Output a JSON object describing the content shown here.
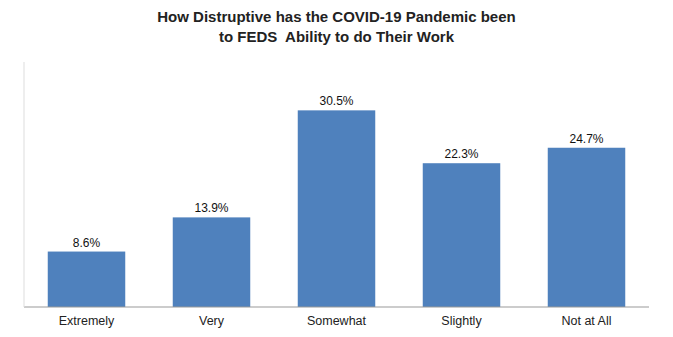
{
  "chart_data": {
    "type": "bar",
    "title": "How Distruptive has the COVID-19 Pandemic been\nto FEDS  Ability to do Their Work",
    "categories": [
      "Extremely",
      "Very",
      "Somewhat",
      "Slightly",
      "Not at All"
    ],
    "values": [
      8.6,
      13.9,
      30.5,
      22.3,
      24.7
    ],
    "value_labels": [
      "8.6%",
      "13.9%",
      "30.5%",
      "22.3%",
      "24.7%"
    ],
    "data_labels": true,
    "color": "#4F81BD",
    "ylim": [
      0,
      38
    ],
    "tick_labels": "x",
    "grid": false
  }
}
